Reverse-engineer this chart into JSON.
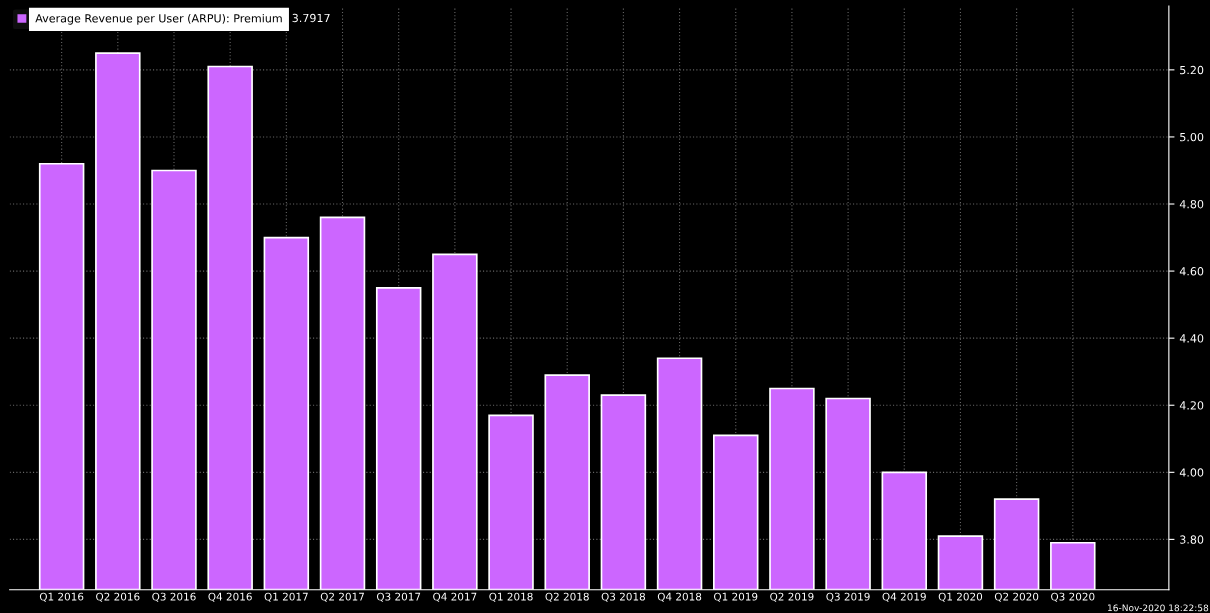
{
  "chart_data": {
    "type": "bar",
    "categories": [
      "Q1 2016",
      "Q2 2016",
      "Q3 2016",
      "Q4 2016",
      "Q1 2017",
      "Q2 2017",
      "Q3 2017",
      "Q4 2017",
      "Q1 2018",
      "Q2 2018",
      "Q3 2018",
      "Q4 2018",
      "Q1 2019",
      "Q2 2019",
      "Q3 2019",
      "Q4 2019",
      "Q1 2020",
      "Q2 2020",
      "Q3 2020"
    ],
    "series": [
      {
        "name": "Average Revenue per User (ARPU): Premium",
        "color": "#cc66ff",
        "values": [
          4.92,
          5.25,
          4.9,
          5.21,
          4.7,
          4.76,
          4.55,
          4.65,
          4.17,
          4.29,
          4.23,
          4.34,
          4.11,
          4.25,
          4.22,
          4.0,
          3.81,
          3.92,
          3.79
        ]
      }
    ],
    "ylim": [
      3.65,
      5.39
    ],
    "yticks": [
      {
        "value": 3.8,
        "label": "3.80"
      },
      {
        "value": 4.0,
        "label": "4.00"
      },
      {
        "value": 4.2,
        "label": "4.20"
      },
      {
        "value": 4.4,
        "label": "4.40"
      },
      {
        "value": 4.6,
        "label": "4.60"
      },
      {
        "value": 4.8,
        "label": "4.80"
      },
      {
        "value": 5.0,
        "label": "5.00"
      },
      {
        "value": 5.2,
        "label": "5.20"
      }
    ],
    "grid": true,
    "legend": "top left",
    "annotations": [
      "3.7917",
      "16-Nov-2020 18:22:58"
    ]
  }
}
